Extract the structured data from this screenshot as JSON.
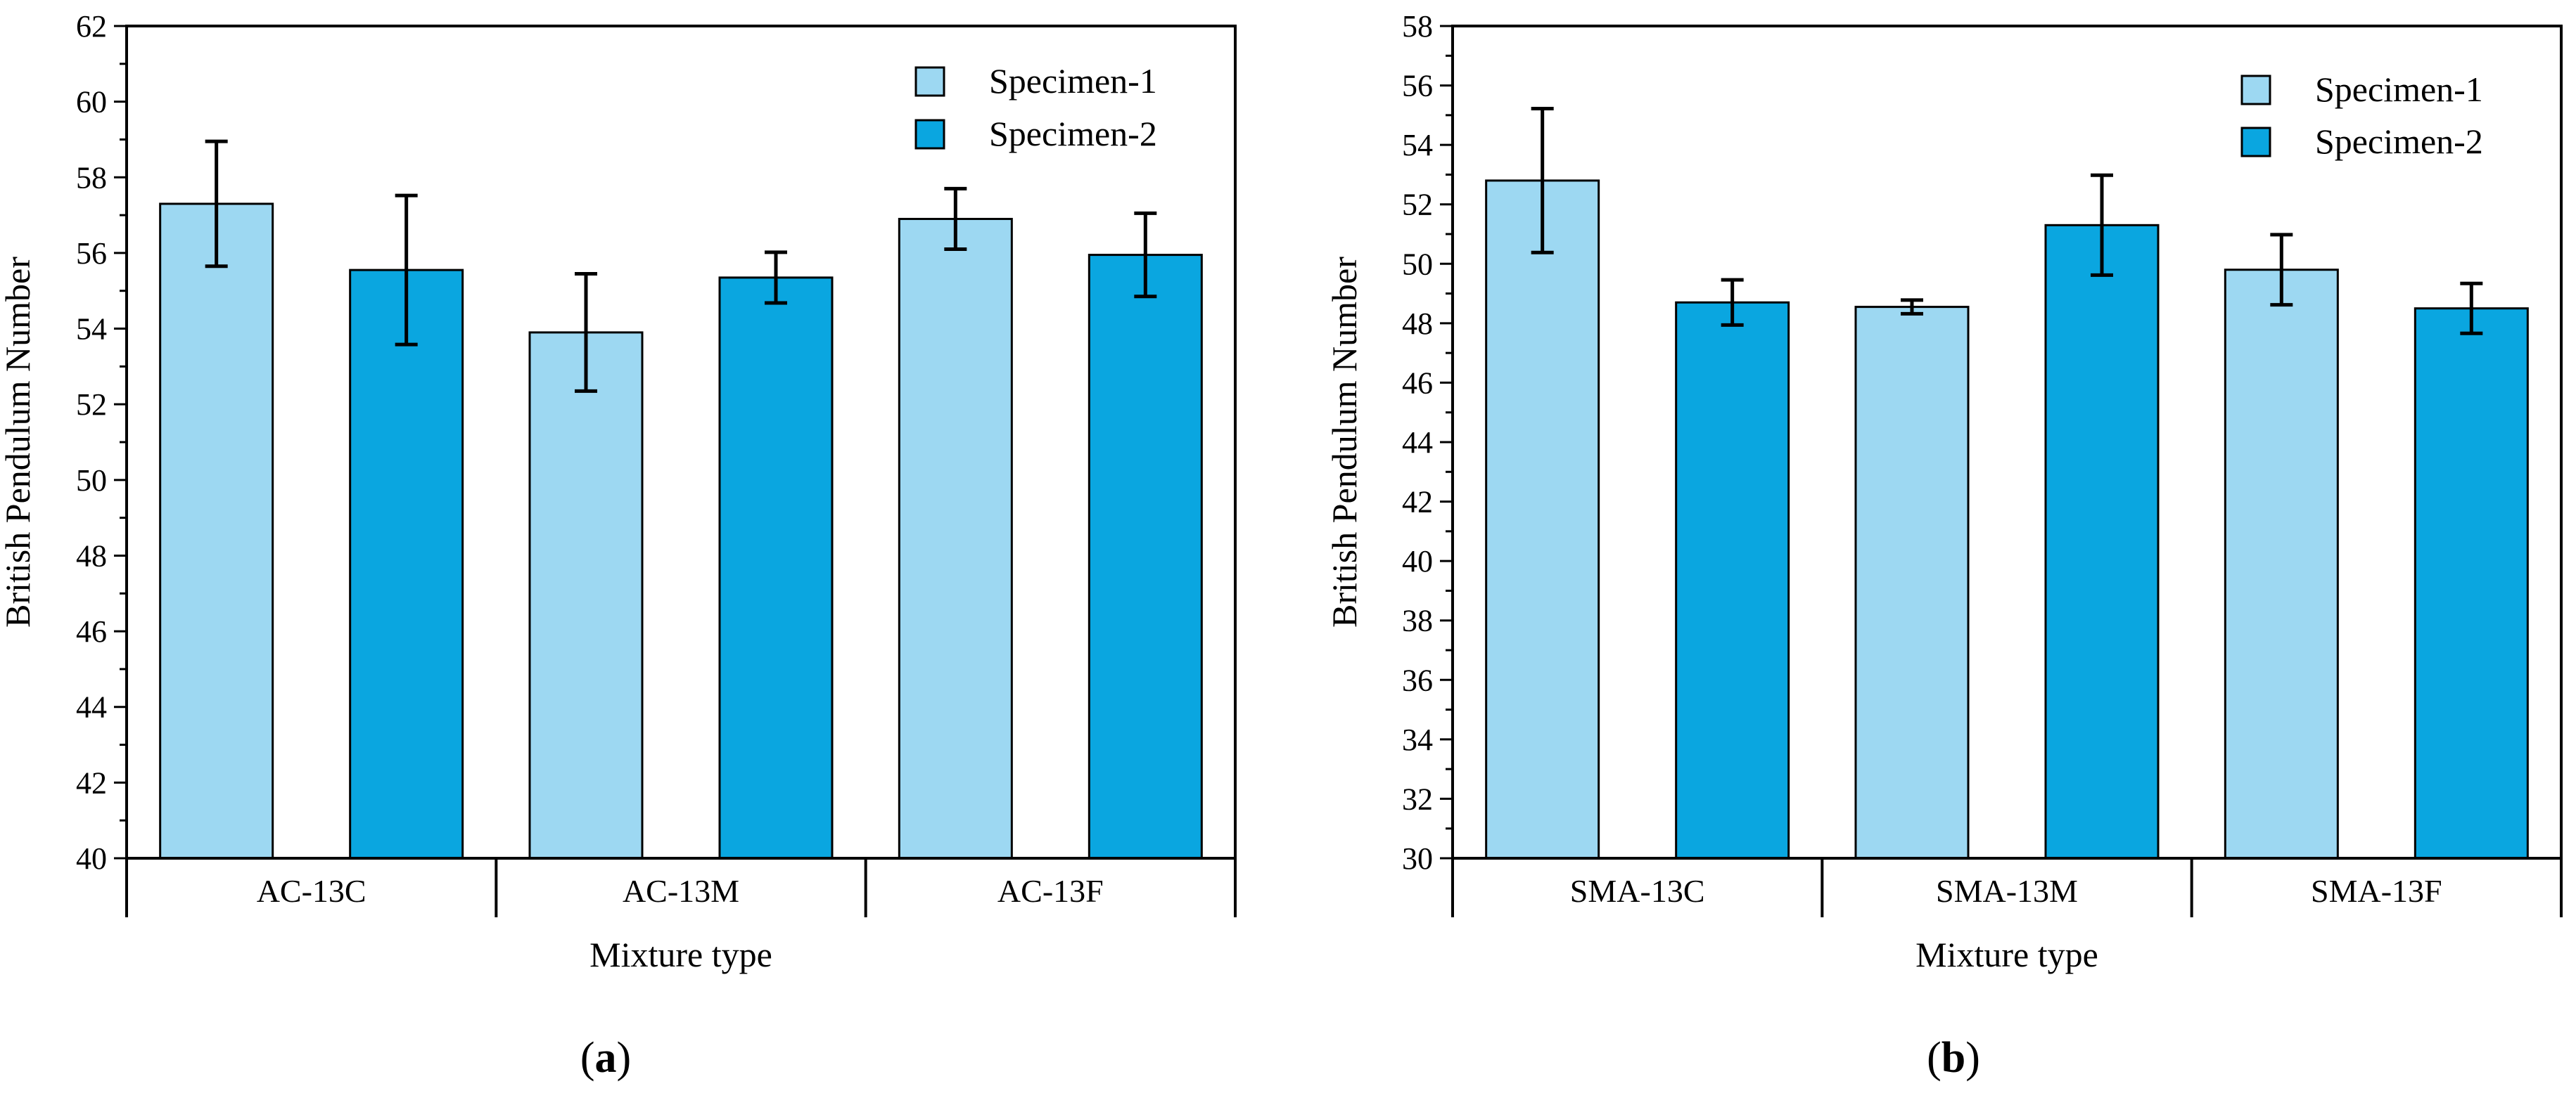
{
  "chart_data": [
    {
      "type": "bar",
      "panel_label": "a",
      "xlabel": "Mixture type",
      "ylabel": "British Pendulum Number",
      "ylim": [
        40,
        62
      ],
      "ytick_step": 2,
      "categories": [
        "AC-13C",
        "AC-13M",
        "AC-13F"
      ],
      "series": [
        {
          "name": "Specimen-1",
          "values": [
            57.3,
            53.9,
            56.9
          ],
          "errors": [
            1.65,
            1.55,
            0.8
          ],
          "color": "#9dd8f2"
        },
        {
          "name": "Specimen-2",
          "values": [
            55.55,
            55.35,
            55.95
          ],
          "errors": [
            1.97,
            0.67,
            1.1
          ],
          "color": "#0aa6e0"
        }
      ],
      "legend_position": "top-right",
      "grid": false
    },
    {
      "type": "bar",
      "panel_label": "b",
      "xlabel": "Mixture type",
      "ylabel": "British Pendulum Number",
      "ylim": [
        30,
        58
      ],
      "ytick_step": 2,
      "categories": [
        "SMA-13C",
        "SMA-13M",
        "SMA-13F"
      ],
      "series": [
        {
          "name": "Specimen-1",
          "values": [
            52.8,
            48.55,
            49.8
          ],
          "errors": [
            2.42,
            0.23,
            1.18
          ],
          "color": "#9dd8f2"
        },
        {
          "name": "Specimen-2",
          "values": [
            48.7,
            51.3,
            48.5
          ],
          "errors": [
            0.76,
            1.68,
            0.84
          ],
          "color": "#0aa6e0"
        }
      ],
      "legend_position": "top-right",
      "grid": false
    }
  ]
}
